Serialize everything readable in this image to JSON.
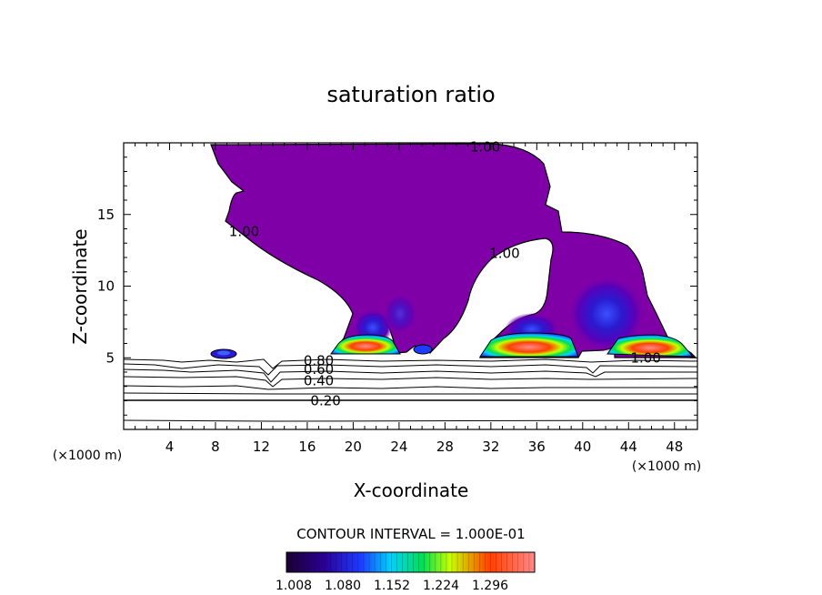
{
  "chart_data": {
    "type": "contour",
    "title": "saturation ratio",
    "xlabel": "X-coordinate",
    "ylabel": "Z-coordinate",
    "x_unit": "(×1000 m)",
    "y_unit": "(×1000 m)",
    "xlim": [
      0,
      50
    ],
    "ylim": [
      0,
      20
    ],
    "xticks": [
      4,
      8,
      12,
      16,
      20,
      24,
      28,
      32,
      36,
      40,
      44,
      48
    ],
    "yticks": [
      5,
      10,
      15
    ],
    "contour_labels": [
      {
        "text": "1.00",
        "x": 31.5,
        "z": 19.7
      },
      {
        "text": "1.00",
        "x": 10.5,
        "z": 13.8
      },
      {
        "text": "1.00",
        "x": 33.2,
        "z": 12.3
      },
      {
        "text": "1.00",
        "x": 45.5,
        "z": 5.0
      },
      {
        "text": "0.80",
        "x": 17.0,
        "z": 4.8
      },
      {
        "text": "0.60",
        "x": 17.0,
        "z": 4.2
      },
      {
        "text": "0.40",
        "x": 17.0,
        "z": 3.4
      },
      {
        "text": "0.20",
        "x": 17.6,
        "z": 2.0
      }
    ],
    "contour_interval": "CONTOUR INTERVAL = 1.000E-01",
    "colorbar": {
      "labels": [
        "1.008",
        "1.080",
        "1.152",
        "1.224",
        "1.296"
      ],
      "stops": [
        "#1a0033",
        "#2a0090",
        "#1e3cff",
        "#00d2ff",
        "#00e050",
        "#c8ff00",
        "#ff4000",
        "#ff8a8a"
      ]
    },
    "fill_color": "#8000a8"
  }
}
